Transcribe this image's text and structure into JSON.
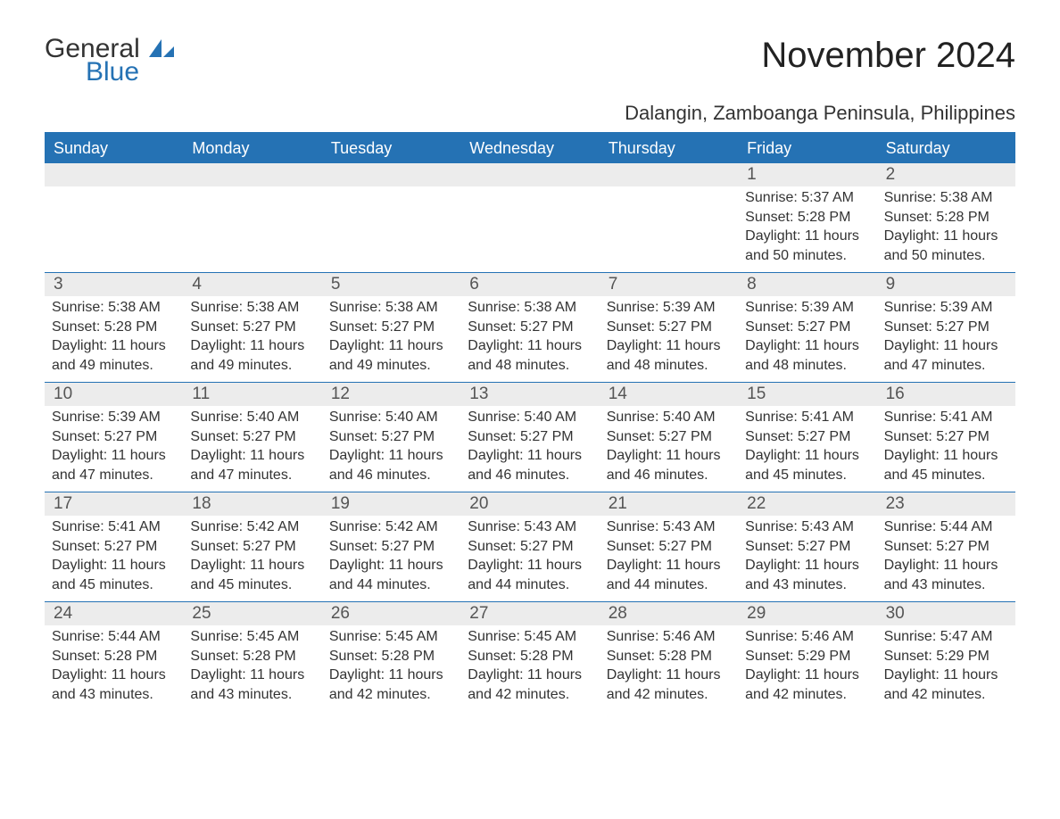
{
  "logo": {
    "general": "General",
    "blue": "Blue",
    "icon_color": "#2572b4"
  },
  "title": "November 2024",
  "subtitle": "Dalangin, Zamboanga Peninsula, Philippines",
  "colors": {
    "header_bg": "#2572b4",
    "header_text": "#ffffff",
    "daynum_bg": "#ececec",
    "border": "#2572b4",
    "text": "#333333"
  },
  "day_headers": [
    "Sunday",
    "Monday",
    "Tuesday",
    "Wednesday",
    "Thursday",
    "Friday",
    "Saturday"
  ],
  "weeks": [
    [
      {
        "empty": true
      },
      {
        "empty": true
      },
      {
        "empty": true
      },
      {
        "empty": true
      },
      {
        "empty": true
      },
      {
        "n": "1",
        "sunrise": "Sunrise: 5:37 AM",
        "sunset": "Sunset: 5:28 PM",
        "dl1": "Daylight: 11 hours",
        "dl2": "and 50 minutes."
      },
      {
        "n": "2",
        "sunrise": "Sunrise: 5:38 AM",
        "sunset": "Sunset: 5:28 PM",
        "dl1": "Daylight: 11 hours",
        "dl2": "and 50 minutes."
      }
    ],
    [
      {
        "n": "3",
        "sunrise": "Sunrise: 5:38 AM",
        "sunset": "Sunset: 5:28 PM",
        "dl1": "Daylight: 11 hours",
        "dl2": "and 49 minutes."
      },
      {
        "n": "4",
        "sunrise": "Sunrise: 5:38 AM",
        "sunset": "Sunset: 5:27 PM",
        "dl1": "Daylight: 11 hours",
        "dl2": "and 49 minutes."
      },
      {
        "n": "5",
        "sunrise": "Sunrise: 5:38 AM",
        "sunset": "Sunset: 5:27 PM",
        "dl1": "Daylight: 11 hours",
        "dl2": "and 49 minutes."
      },
      {
        "n": "6",
        "sunrise": "Sunrise: 5:38 AM",
        "sunset": "Sunset: 5:27 PM",
        "dl1": "Daylight: 11 hours",
        "dl2": "and 48 minutes."
      },
      {
        "n": "7",
        "sunrise": "Sunrise: 5:39 AM",
        "sunset": "Sunset: 5:27 PM",
        "dl1": "Daylight: 11 hours",
        "dl2": "and 48 minutes."
      },
      {
        "n": "8",
        "sunrise": "Sunrise: 5:39 AM",
        "sunset": "Sunset: 5:27 PM",
        "dl1": "Daylight: 11 hours",
        "dl2": "and 48 minutes."
      },
      {
        "n": "9",
        "sunrise": "Sunrise: 5:39 AM",
        "sunset": "Sunset: 5:27 PM",
        "dl1": "Daylight: 11 hours",
        "dl2": "and 47 minutes."
      }
    ],
    [
      {
        "n": "10",
        "sunrise": "Sunrise: 5:39 AM",
        "sunset": "Sunset: 5:27 PM",
        "dl1": "Daylight: 11 hours",
        "dl2": "and 47 minutes."
      },
      {
        "n": "11",
        "sunrise": "Sunrise: 5:40 AM",
        "sunset": "Sunset: 5:27 PM",
        "dl1": "Daylight: 11 hours",
        "dl2": "and 47 minutes."
      },
      {
        "n": "12",
        "sunrise": "Sunrise: 5:40 AM",
        "sunset": "Sunset: 5:27 PM",
        "dl1": "Daylight: 11 hours",
        "dl2": "and 46 minutes."
      },
      {
        "n": "13",
        "sunrise": "Sunrise: 5:40 AM",
        "sunset": "Sunset: 5:27 PM",
        "dl1": "Daylight: 11 hours",
        "dl2": "and 46 minutes."
      },
      {
        "n": "14",
        "sunrise": "Sunrise: 5:40 AM",
        "sunset": "Sunset: 5:27 PM",
        "dl1": "Daylight: 11 hours",
        "dl2": "and 46 minutes."
      },
      {
        "n": "15",
        "sunrise": "Sunrise: 5:41 AM",
        "sunset": "Sunset: 5:27 PM",
        "dl1": "Daylight: 11 hours",
        "dl2": "and 45 minutes."
      },
      {
        "n": "16",
        "sunrise": "Sunrise: 5:41 AM",
        "sunset": "Sunset: 5:27 PM",
        "dl1": "Daylight: 11 hours",
        "dl2": "and 45 minutes."
      }
    ],
    [
      {
        "n": "17",
        "sunrise": "Sunrise: 5:41 AM",
        "sunset": "Sunset: 5:27 PM",
        "dl1": "Daylight: 11 hours",
        "dl2": "and 45 minutes."
      },
      {
        "n": "18",
        "sunrise": "Sunrise: 5:42 AM",
        "sunset": "Sunset: 5:27 PM",
        "dl1": "Daylight: 11 hours",
        "dl2": "and 45 minutes."
      },
      {
        "n": "19",
        "sunrise": "Sunrise: 5:42 AM",
        "sunset": "Sunset: 5:27 PM",
        "dl1": "Daylight: 11 hours",
        "dl2": "and 44 minutes."
      },
      {
        "n": "20",
        "sunrise": "Sunrise: 5:43 AM",
        "sunset": "Sunset: 5:27 PM",
        "dl1": "Daylight: 11 hours",
        "dl2": "and 44 minutes."
      },
      {
        "n": "21",
        "sunrise": "Sunrise: 5:43 AM",
        "sunset": "Sunset: 5:27 PM",
        "dl1": "Daylight: 11 hours",
        "dl2": "and 44 minutes."
      },
      {
        "n": "22",
        "sunrise": "Sunrise: 5:43 AM",
        "sunset": "Sunset: 5:27 PM",
        "dl1": "Daylight: 11 hours",
        "dl2": "and 43 minutes."
      },
      {
        "n": "23",
        "sunrise": "Sunrise: 5:44 AM",
        "sunset": "Sunset: 5:27 PM",
        "dl1": "Daylight: 11 hours",
        "dl2": "and 43 minutes."
      }
    ],
    [
      {
        "n": "24",
        "sunrise": "Sunrise: 5:44 AM",
        "sunset": "Sunset: 5:28 PM",
        "dl1": "Daylight: 11 hours",
        "dl2": "and 43 minutes."
      },
      {
        "n": "25",
        "sunrise": "Sunrise: 5:45 AM",
        "sunset": "Sunset: 5:28 PM",
        "dl1": "Daylight: 11 hours",
        "dl2": "and 43 minutes."
      },
      {
        "n": "26",
        "sunrise": "Sunrise: 5:45 AM",
        "sunset": "Sunset: 5:28 PM",
        "dl1": "Daylight: 11 hours",
        "dl2": "and 42 minutes."
      },
      {
        "n": "27",
        "sunrise": "Sunrise: 5:45 AM",
        "sunset": "Sunset: 5:28 PM",
        "dl1": "Daylight: 11 hours",
        "dl2": "and 42 minutes."
      },
      {
        "n": "28",
        "sunrise": "Sunrise: 5:46 AM",
        "sunset": "Sunset: 5:28 PM",
        "dl1": "Daylight: 11 hours",
        "dl2": "and 42 minutes."
      },
      {
        "n": "29",
        "sunrise": "Sunrise: 5:46 AM",
        "sunset": "Sunset: 5:29 PM",
        "dl1": "Daylight: 11 hours",
        "dl2": "and 42 minutes."
      },
      {
        "n": "30",
        "sunrise": "Sunrise: 5:47 AM",
        "sunset": "Sunset: 5:29 PM",
        "dl1": "Daylight: 11 hours",
        "dl2": "and 42 minutes."
      }
    ]
  ]
}
